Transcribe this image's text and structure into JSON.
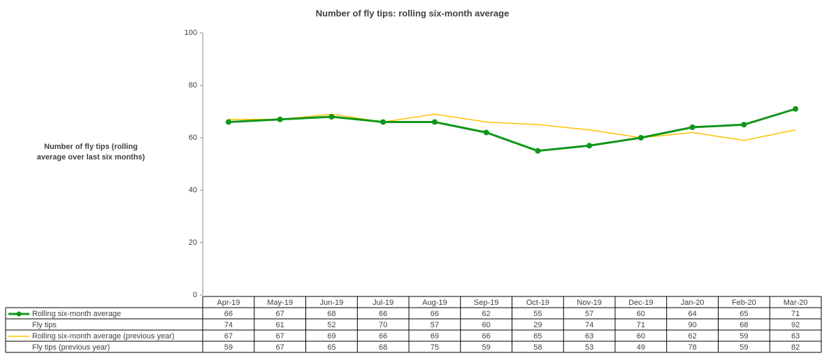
{
  "chart_data": {
    "type": "line",
    "title": "Number of fly tips: rolling six-month average",
    "y_label_lines": [
      "Number of fly tips (rolling",
      "average over last six months)"
    ],
    "categories": [
      "Apr-19",
      "May-19",
      "Jun-19",
      "Jul-19",
      "Aug-19",
      "Sep-19",
      "Oct-19",
      "Nov-19",
      "Dec-19",
      "Jan-20",
      "Feb-20",
      "Mar-20"
    ],
    "series": [
      {
        "name": "Rolling six-month average",
        "color": "#109618",
        "markers": true,
        "values": [
          66,
          67,
          68,
          66,
          66,
          62,
          55,
          57,
          60,
          64,
          65,
          71
        ]
      },
      {
        "name": "Fly tips",
        "show_line": false,
        "values": [
          74,
          61,
          52,
          70,
          57,
          60,
          29,
          74,
          71,
          90,
          68,
          92
        ]
      },
      {
        "name": "Rolling six-month average (previous year)",
        "color": "#ffc000",
        "markers": false,
        "values": [
          67,
          67,
          69,
          66,
          69,
          66,
          65,
          63,
          60,
          62,
          59,
          63
        ]
      },
      {
        "name": "Fly tips (previous year)",
        "show_line": false,
        "values": [
          59,
          67,
          65,
          68,
          75,
          59,
          58,
          53,
          49,
          78,
          59,
          82
        ]
      }
    ],
    "ylim": [
      0,
      100
    ],
    "yticks": [
      0,
      20,
      40,
      60,
      80,
      100
    ],
    "grid": false,
    "data_table": true
  }
}
